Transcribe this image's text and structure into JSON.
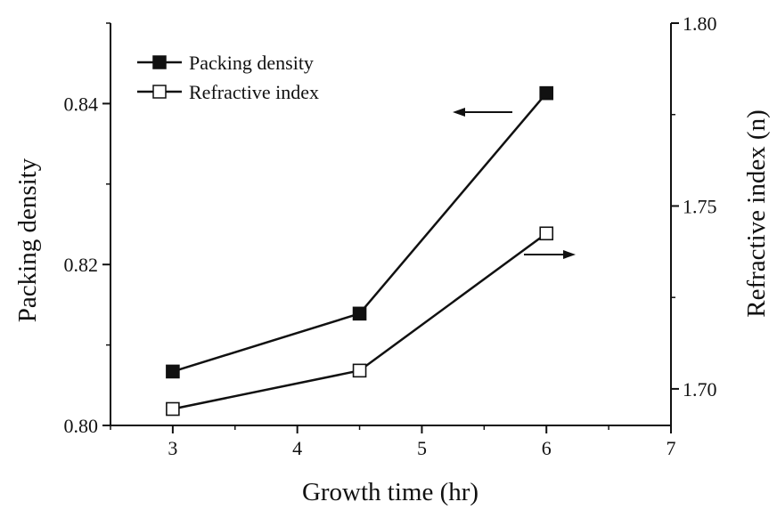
{
  "chart_data": {
    "type": "line",
    "xlabel": "Growth time (hr)",
    "x_ticks": [
      "3",
      "4",
      "5",
      "6",
      "7"
    ],
    "xlim": [
      2.5,
      7
    ],
    "y_left": {
      "label": "Packing density",
      "ylim": [
        0.8,
        0.85
      ],
      "ticks": [
        "0.80",
        "0.82",
        "0.84"
      ],
      "tick_values": [
        0.8,
        0.82,
        0.84
      ]
    },
    "y_right": {
      "label": "Refractive index (n)",
      "ylim": [
        1.69,
        1.8
      ],
      "ticks": [
        "1.70",
        "1.75",
        "1.80"
      ],
      "tick_values": [
        1.7,
        1.75,
        1.8
      ]
    },
    "series": [
      {
        "name": "Packing density",
        "axis": "left",
        "marker": "filled-square",
        "x": [
          3,
          4.5,
          6
        ],
        "y": [
          0.8067,
          0.8139,
          0.8413
        ]
      },
      {
        "name": "Refractive index",
        "axis": "right",
        "marker": "open-square",
        "x": [
          3,
          4.5,
          6
        ],
        "y": [
          1.6945,
          1.705,
          1.7425
        ]
      }
    ],
    "legend_position": "top-left",
    "grid": false,
    "annotations": [
      {
        "kind": "arrow",
        "direction": "left",
        "points_to": "left axis",
        "near_series": "Packing density"
      },
      {
        "kind": "arrow",
        "direction": "right",
        "points_to": "right axis",
        "near_series": "Refractive index"
      }
    ],
    "colors": {
      "line": "#111111",
      "marker": "#111111",
      "background": "#ffffff"
    }
  }
}
